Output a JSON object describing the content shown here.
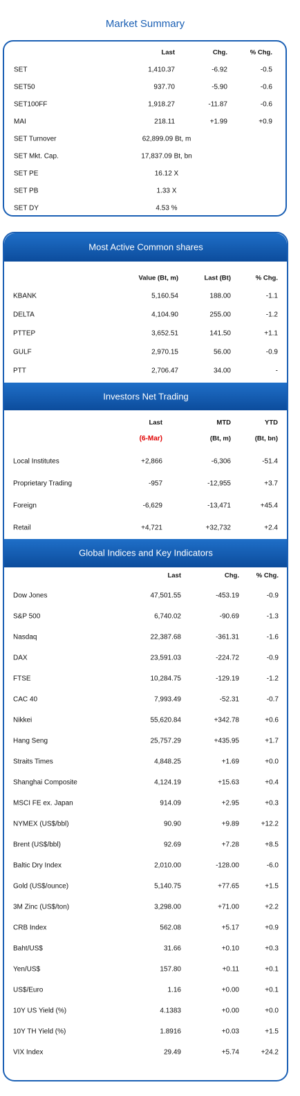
{
  "title": "Market Summary",
  "market_summary": {
    "header": [
      "Last",
      "Chg.",
      "% Chg."
    ],
    "rows": [
      [
        "SET",
        "1,410.37",
        "-6.92",
        "-0.5"
      ],
      [
        "SET50",
        "937.70",
        "-5.90",
        "-0.6"
      ],
      [
        "SET100FF",
        "1,918.27",
        "-11.87",
        "-0.6"
      ],
      [
        "MAI",
        "218.11",
        "+1.99",
        "+0.9"
      ],
      [
        "SET Turnover",
        "62,899.09 Bt, m"
      ],
      [
        "SET Mkt. Cap.",
        "17,837.09 Bt, bn"
      ],
      [
        "SET PE",
        "16.12 X"
      ],
      [
        "SET PB",
        "1.33 X"
      ],
      [
        "SET DY",
        "4.53 %"
      ]
    ]
  },
  "most_active": {
    "title": "Most Active Common shares",
    "header": [
      "Value (Bt, m)",
      "Last (Bt)",
      "% Chg."
    ],
    "rows": [
      [
        "KBANK",
        "5,160.54",
        "188.00",
        "-1.1"
      ],
      [
        "DELTA",
        "4,104.90",
        "255.00",
        "-1.2"
      ],
      [
        "PTTEP",
        "3,652.51",
        "141.50",
        "+1.1"
      ],
      [
        "GULF",
        "2,970.15",
        "56.00",
        "-0.9"
      ],
      [
        "PTT",
        "2,706.47",
        "34.00",
        "-"
      ]
    ]
  },
  "investors": {
    "title": "Investors Net Trading",
    "header": [
      "Last",
      "MTD",
      "YTD"
    ],
    "subheader": [
      "(6-Mar)",
      "(Bt, m)",
      "(Bt, bn)"
    ],
    "rows": [
      [
        "Local Institutes",
        "+2,866",
        "-6,306",
        "-51.4"
      ],
      [
        "Proprietary Trading",
        "-957",
        "-12,955",
        "+3.7"
      ],
      [
        "Foreign",
        "-6,629",
        "-13,471",
        "+45.4"
      ],
      [
        "Retail",
        "+4,721",
        "+32,732",
        "+2.4"
      ]
    ]
  },
  "global": {
    "title": "Global Indices and Key Indicators",
    "header": [
      "Last",
      "Chg.",
      "% Chg."
    ],
    "rows": [
      [
        "Dow Jones",
        "47,501.55",
        "-453.19",
        "-0.9"
      ],
      [
        "S&P 500",
        "6,740.02",
        "-90.69",
        "-1.3"
      ],
      [
        "Nasdaq",
        "22,387.68",
        "-361.31",
        "-1.6"
      ],
      [
        "DAX",
        "23,591.03",
        "-224.72",
        "-0.9"
      ],
      [
        "FTSE",
        "10,284.75",
        "-129.19",
        "-1.2"
      ],
      [
        "CAC 40",
        "7,993.49",
        "-52.31",
        "-0.7"
      ],
      [
        "Nikkei",
        "55,620.84",
        "+342.78",
        "+0.6"
      ],
      [
        "Hang Seng",
        "25,757.29",
        "+435.95",
        "+1.7"
      ],
      [
        "Straits Times",
        "4,848.25",
        "+1.69",
        "+0.0"
      ],
      [
        "Shanghai Composite",
        "4,124.19",
        "+15.63",
        "+0.4"
      ],
      [
        "MSCI FE ex. Japan",
        "914.09",
        "+2.95",
        "+0.3"
      ],
      [
        "NYMEX (US$/bbl)",
        "90.90",
        "+9.89",
        "+12.2"
      ],
      [
        "Brent (US$/bbl)",
        "92.69",
        "+7.28",
        "+8.5"
      ],
      [
        "Baltic Dry Index",
        "2,010.00",
        "-128.00",
        "-6.0"
      ],
      [
        "Gold (US$/ounce)",
        "5,140.75",
        "+77.65",
        "+1.5"
      ],
      [
        "3M Zinc (US$/ton)",
        "3,298.00",
        "+71.00",
        "+2.2"
      ],
      [
        "CRB Index",
        "562.08",
        "+5.17",
        "+0.9"
      ],
      [
        "Baht/US$",
        "31.66",
        "+0.10",
        "+0.3"
      ],
      [
        "Yen/US$",
        "157.80",
        "+0.11",
        "+0.1"
      ],
      [
        "US$/Euro",
        "1.16",
        "+0.00",
        "+0.1"
      ],
      [
        "10Y US Yield (%)",
        "4.1383",
        "+0.00",
        "+0.0"
      ],
      [
        "10Y TH Yield (%)",
        "1.8916",
        "+0.03",
        "+1.5"
      ],
      [
        "VIX Index",
        "29.49",
        "+5.74",
        "+24.2"
      ]
    ]
  }
}
